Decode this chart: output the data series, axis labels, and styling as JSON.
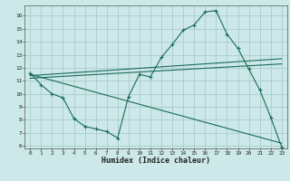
{
  "xlabel": "Humidex (Indice chaleur)",
  "background_color": "#cce8e8",
  "grid_color": "#aacccc",
  "line_color": "#1a6a5a",
  "xlim": [
    -0.5,
    23.5
  ],
  "ylim": [
    5.8,
    16.8
  ],
  "xticks": [
    0,
    1,
    2,
    3,
    4,
    5,
    6,
    7,
    8,
    9,
    10,
    11,
    12,
    13,
    14,
    15,
    16,
    17,
    18,
    19,
    20,
    21,
    22,
    23
  ],
  "yticks": [
    6,
    7,
    8,
    9,
    10,
    11,
    12,
    13,
    14,
    15,
    16
  ],
  "line1_x": [
    0,
    1,
    2,
    3,
    4,
    5,
    6,
    7,
    8,
    9,
    10,
    11,
    12,
    13,
    14,
    15,
    16,
    17,
    18,
    19,
    20,
    21,
    22,
    23
  ],
  "line1_y": [
    11.6,
    10.7,
    10.0,
    9.7,
    8.1,
    7.5,
    7.3,
    7.1,
    6.6,
    9.8,
    11.5,
    11.3,
    12.8,
    13.8,
    14.9,
    15.3,
    16.3,
    16.4,
    14.6,
    13.5,
    11.9,
    10.3,
    8.2,
    5.9
  ],
  "line2_x": [
    0,
    23
  ],
  "line2_y": [
    11.4,
    12.7
  ],
  "line3_x": [
    0,
    23
  ],
  "line3_y": [
    11.2,
    12.3
  ],
  "line4_x": [
    0,
    23
  ],
  "line4_y": [
    11.5,
    6.2
  ]
}
